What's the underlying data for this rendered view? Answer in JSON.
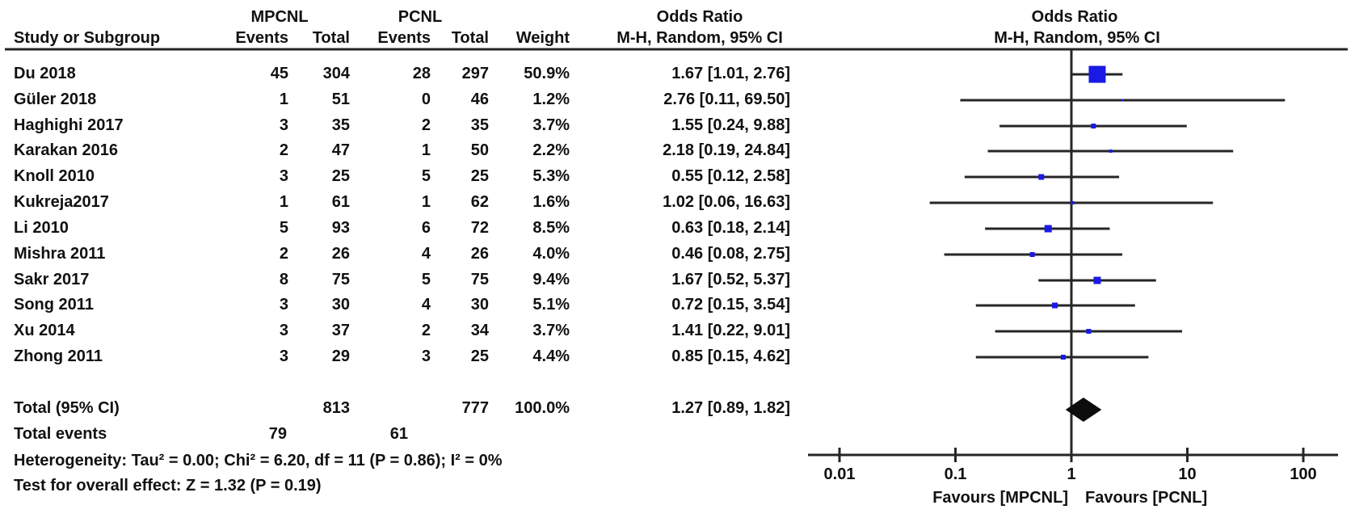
{
  "chart_data": {
    "type": "scatter",
    "subtype": "forest-plot",
    "group1": "MPCNL",
    "group2": "PCNL",
    "or_title_left": "Odds Ratio",
    "or_subtitle_left": "M-H, Random, 95% CI",
    "or_title_right": "Odds Ratio",
    "or_subtitle_right": "M-H, Random, 95% CI",
    "columns": [
      "Study or Subgroup",
      "Events",
      "Total",
      "Events",
      "Total",
      "Weight"
    ],
    "studies": [
      {
        "name": "Du 2018",
        "e1": 45,
        "t1": 304,
        "e2": 28,
        "t2": 297,
        "weight": "50.9%",
        "weight_val": 50.9,
        "or": 1.67,
        "lo": 1.01,
        "hi": 2.76,
        "or_label": "1.67 [1.01, 2.76]"
      },
      {
        "name": "Güler 2018",
        "e1": 1,
        "t1": 51,
        "e2": 0,
        "t2": 46,
        "weight": "1.2%",
        "weight_val": 1.2,
        "or": 2.76,
        "lo": 0.11,
        "hi": 69.5,
        "or_label": "2.76 [0.11, 69.50]"
      },
      {
        "name": "Haghighi 2017",
        "e1": 3,
        "t1": 35,
        "e2": 2,
        "t2": 35,
        "weight": "3.7%",
        "weight_val": 3.7,
        "or": 1.55,
        "lo": 0.24,
        "hi": 9.88,
        "or_label": "1.55 [0.24, 9.88]"
      },
      {
        "name": "Karakan 2016",
        "e1": 2,
        "t1": 47,
        "e2": 1,
        "t2": 50,
        "weight": "2.2%",
        "weight_val": 2.2,
        "or": 2.18,
        "lo": 0.19,
        "hi": 24.84,
        "or_label": "2.18 [0.19, 24.84]"
      },
      {
        "name": "Knoll 2010",
        "e1": 3,
        "t1": 25,
        "e2": 5,
        "t2": 25,
        "weight": "5.3%",
        "weight_val": 5.3,
        "or": 0.55,
        "lo": 0.12,
        "hi": 2.58,
        "or_label": "0.55 [0.12, 2.58]"
      },
      {
        "name": "Kukreja2017",
        "e1": 1,
        "t1": 61,
        "e2": 1,
        "t2": 62,
        "weight": "1.6%",
        "weight_val": 1.6,
        "or": 1.02,
        "lo": 0.06,
        "hi": 16.63,
        "or_label": "1.02 [0.06, 16.63]"
      },
      {
        "name": "Li 2010",
        "e1": 5,
        "t1": 93,
        "e2": 6,
        "t2": 72,
        "weight": "8.5%",
        "weight_val": 8.5,
        "or": 0.63,
        "lo": 0.18,
        "hi": 2.14,
        "or_label": "0.63 [0.18, 2.14]"
      },
      {
        "name": "Mishra 2011",
        "e1": 2,
        "t1": 26,
        "e2": 4,
        "t2": 26,
        "weight": "4.0%",
        "weight_val": 4.0,
        "or": 0.46,
        "lo": 0.08,
        "hi": 2.75,
        "or_label": "0.46 [0.08, 2.75]"
      },
      {
        "name": "Sakr 2017",
        "e1": 8,
        "t1": 75,
        "e2": 5,
        "t2": 75,
        "weight": "9.4%",
        "weight_val": 9.4,
        "or": 1.67,
        "lo": 0.52,
        "hi": 5.37,
        "or_label": "1.67 [0.52, 5.37]"
      },
      {
        "name": "Song 2011",
        "e1": 3,
        "t1": 30,
        "e2": 4,
        "t2": 30,
        "weight": "5.1%",
        "weight_val": 5.1,
        "or": 0.72,
        "lo": 0.15,
        "hi": 3.54,
        "or_label": "0.72 [0.15, 3.54]"
      },
      {
        "name": "Xu 2014",
        "e1": 3,
        "t1": 37,
        "e2": 2,
        "t2": 34,
        "weight": "3.7%",
        "weight_val": 3.7,
        "or": 1.41,
        "lo": 0.22,
        "hi": 9.01,
        "or_label": "1.41 [0.22, 9.01]"
      },
      {
        "name": "Zhong 2011",
        "e1": 3,
        "t1": 29,
        "e2": 3,
        "t2": 25,
        "weight": "4.4%",
        "weight_val": 4.4,
        "or": 0.85,
        "lo": 0.15,
        "hi": 4.62,
        "or_label": "0.85 [0.15, 4.62]"
      }
    ],
    "total": {
      "label": "Total (95% CI)",
      "t1": 813,
      "t2": 777,
      "weight": "100.0%",
      "or": 1.27,
      "lo": 0.89,
      "hi": 1.82,
      "or_label": "1.27 [0.89, 1.82]"
    },
    "total_events": {
      "label": "Total events",
      "e1": 79,
      "e2": 61
    },
    "heterogeneity": "Heterogeneity: Tau² = 0.00; Chi² = 6.20, df = 11 (P = 0.86); I² = 0%",
    "overall_effect": "Test for overall effect: Z = 1.32 (P = 0.19)",
    "axis": {
      "scale": "log10",
      "min": 0.01,
      "max": 100,
      "ticks": [
        0.01,
        0.1,
        1,
        10,
        100
      ],
      "tick_labels": [
        "0.01",
        "0.1",
        "1",
        "10",
        "100"
      ],
      "center": 1
    },
    "favours_left": "Favours [MPCNL]",
    "favours_right": "Favours [PCNL]",
    "colors": {
      "marker": "#1A1AE6",
      "line": "#262626",
      "diamond": "#0d0d0d",
      "text": "#111111"
    }
  }
}
